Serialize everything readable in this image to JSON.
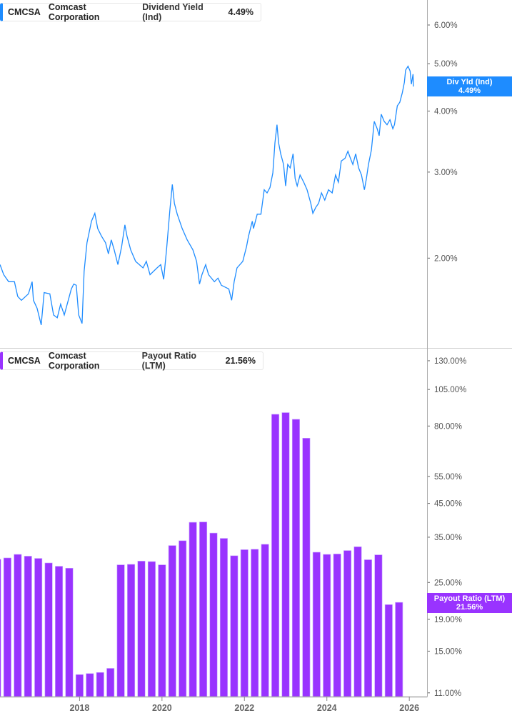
{
  "colors": {
    "yield": "#1e8cff",
    "payout": "#9933ff",
    "axis": "#aaaaaa"
  },
  "top_legend": {
    "ticker": "CMCSA",
    "company": "Comcast Corporation",
    "metric": "Dividend Yield (Ind)",
    "value": "4.49%"
  },
  "bottom_legend": {
    "ticker": "CMCSA",
    "company": "Comcast Corporation",
    "metric": "Payout Ratio (LTM)",
    "value": "21.56%"
  },
  "top_tag": {
    "label": "Div Yld (Ind)",
    "value": "4.49%"
  },
  "bottom_tag": {
    "label": "Payout Ratio (LTM)",
    "value": "21.56%"
  },
  "chart_data": [
    {
      "type": "line",
      "scale": "log",
      "xlim": [
        2016.07,
        2026.43
      ],
      "ylim": [
        1.31,
        6.75
      ],
      "y_ticks": [
        6,
        5,
        4,
        3,
        2
      ],
      "y_tick_labels": [
        "6.00%",
        "5.00%",
        "4.00%",
        "3.00%",
        "2.00%"
      ],
      "series": [
        {
          "name": "Dividend Yield (Ind)",
          "x": [
            2016.07,
            2016.16,
            2016.28,
            2016.42,
            2016.5,
            2016.59,
            2016.76,
            2016.85,
            2016.88,
            2016.97,
            2017.07,
            2017.14,
            2017.28,
            2017.37,
            2017.46,
            2017.54,
            2017.63,
            2017.8,
            2017.86,
            2017.92,
            2017.98,
            2018.06,
            2018.11,
            2018.18,
            2018.29,
            2018.37,
            2018.44,
            2018.53,
            2018.63,
            2018.7,
            2018.77,
            2018.84,
            2018.93,
            2019.02,
            2019.1,
            2019.15,
            2019.24,
            2019.36,
            2019.54,
            2019.62,
            2019.71,
            2019.88,
            2019.97,
            2020.04,
            2020.11,
            2020.19,
            2020.25,
            2020.3,
            2020.37,
            2020.49,
            2020.61,
            2020.75,
            2020.84,
            2020.91,
            2020.97,
            2021.06,
            2021.13,
            2021.27,
            2021.36,
            2021.44,
            2021.62,
            2021.69,
            2021.75,
            2021.82,
            2021.96,
            2022.05,
            2022.1,
            2022.19,
            2022.22,
            2022.31,
            2022.4,
            2022.48,
            2022.55,
            2022.62,
            2022.69,
            2022.74,
            2022.79,
            2022.83,
            2022.88,
            2022.95,
            2023.0,
            2023.05,
            2023.11,
            2023.18,
            2023.23,
            2023.28,
            2023.35,
            2023.44,
            2023.52,
            2023.61,
            2023.66,
            2023.73,
            2023.8,
            2023.87,
            2023.95,
            2024.04,
            2024.13,
            2024.21,
            2024.28,
            2024.35,
            2024.44,
            2024.51,
            2024.56,
            2024.63,
            2024.7,
            2024.77,
            2024.84,
            2024.91,
            2024.96,
            2025.01,
            2025.08,
            2025.15,
            2025.22,
            2025.27,
            2025.32,
            2025.39,
            2025.46,
            2025.53,
            2025.6,
            2025.64,
            2025.71,
            2025.77,
            2025.83,
            2025.88,
            2025.91,
            2025.97,
            2026.02,
            2026.05,
            2026.09,
            2026.1
          ],
          "y": [
            1.94,
            1.85,
            1.79,
            1.79,
            1.67,
            1.64,
            1.69,
            1.79,
            1.64,
            1.58,
            1.46,
            1.7,
            1.69,
            1.53,
            1.51,
            1.61,
            1.53,
            1.73,
            1.77,
            1.76,
            1.53,
            1.47,
            1.88,
            2.15,
            2.38,
            2.47,
            2.3,
            2.22,
            2.15,
            2.04,
            2.18,
            2.08,
            1.94,
            2.11,
            2.34,
            2.22,
            2.08,
            1.97,
            1.91,
            1.97,
            1.85,
            1.91,
            1.94,
            1.81,
            2.08,
            2.5,
            2.83,
            2.59,
            2.46,
            2.3,
            2.18,
            2.08,
            1.97,
            1.77,
            1.85,
            1.94,
            1.85,
            1.79,
            1.82,
            1.76,
            1.73,
            1.64,
            1.79,
            1.91,
            1.97,
            2.11,
            2.22,
            2.38,
            2.3,
            2.46,
            2.46,
            2.76,
            2.72,
            2.79,
            2.99,
            3.44,
            3.75,
            3.44,
            3.27,
            3.11,
            2.81,
            3.11,
            3.06,
            3.27,
            2.91,
            2.81,
            2.96,
            2.86,
            2.76,
            2.59,
            2.47,
            2.54,
            2.59,
            2.72,
            2.63,
            2.76,
            2.72,
            2.96,
            2.86,
            3.16,
            3.2,
            3.31,
            3.22,
            3.11,
            3.27,
            3.06,
            2.96,
            2.76,
            2.91,
            3.11,
            3.33,
            3.81,
            3.68,
            3.56,
            3.94,
            3.81,
            3.75,
            3.84,
            3.68,
            3.75,
            4.1,
            4.17,
            4.36,
            4.58,
            4.85,
            4.94,
            4.83,
            4.54,
            4.76,
            4.49
          ]
        }
      ]
    },
    {
      "type": "bar",
      "scale": "log",
      "xlim": [
        2016.07,
        2026.43
      ],
      "ylim": [
        10.7,
        143
      ],
      "y_ticks": [
        130,
        105,
        80,
        55,
        45,
        35,
        25,
        19,
        15,
        11
      ],
      "y_tick_labels": [
        "130.00%",
        "105.00%",
        "80.00%",
        "55.00%",
        "45.00%",
        "35.00%",
        "25.00%",
        "19.00%",
        "15.00%",
        "11.00%"
      ],
      "x_tick_values": [
        2018,
        2020,
        2022,
        2024,
        2026
      ],
      "x_tick_labels": [
        "2018",
        "2020",
        "2022",
        "2024",
        "2026"
      ],
      "categories": [
        "2015-12",
        "2016-03",
        "2016-06",
        "2016-09",
        "2016-12",
        "2017-03",
        "2017-06",
        "2017-09",
        "2017-12",
        "2018-03",
        "2018-06",
        "2018-09",
        "2018-12",
        "2019-03",
        "2019-06",
        "2019-09",
        "2019-12",
        "2020-03",
        "2020-06",
        "2020-09",
        "2020-12",
        "2021-03",
        "2021-06",
        "2021-09",
        "2021-12",
        "2022-03",
        "2022-06",
        "2022-09",
        "2022-12",
        "2023-03",
        "2023-06",
        "2023-09",
        "2023-12",
        "2024-03",
        "2024-06",
        "2024-09",
        "2024-12",
        "2025-03",
        "2025-06",
        "2025-09"
      ],
      "series": [
        {
          "name": "Payout Ratio (LTM)",
          "values": [
            29.7,
            30.0,
            30.8,
            30.4,
            29.9,
            28.9,
            28.2,
            27.8,
            12.6,
            12.7,
            12.8,
            13.2,
            28.5,
            28.6,
            29.3,
            29.2,
            28.5,
            32.9,
            34.1,
            39.1,
            39.2,
            36.1,
            34.7,
            30.5,
            31.9,
            32.0,
            33.2,
            87.3,
            88.4,
            84.1,
            73.1,
            31.3,
            30.8,
            30.9,
            31.7,
            32.6,
            29.6,
            30.7,
            21.2,
            21.56
          ]
        }
      ]
    }
  ]
}
